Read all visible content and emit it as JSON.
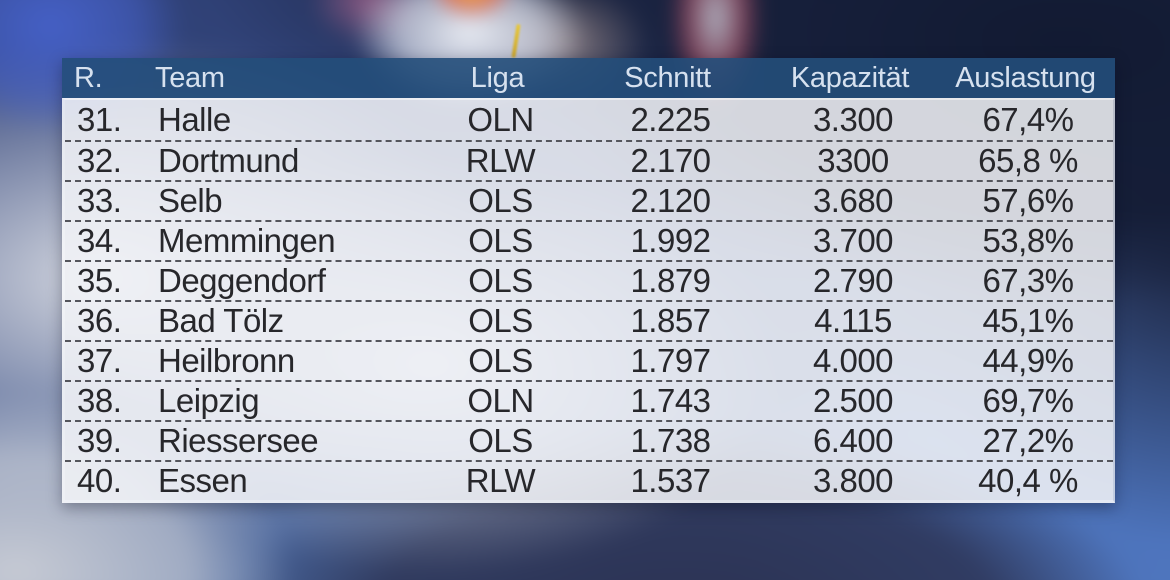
{
  "table": {
    "columns": [
      {
        "key": "rank",
        "label": "R."
      },
      {
        "key": "team",
        "label": "Team"
      },
      {
        "key": "liga",
        "label": "Liga"
      },
      {
        "key": "schnitt",
        "label": "Schnitt"
      },
      {
        "key": "kapazitaet",
        "label": "Kapazität"
      },
      {
        "key": "auslastung",
        "label": "Auslastung"
      }
    ],
    "rows": [
      {
        "rank": "31.",
        "team": "Halle",
        "liga": "OLN",
        "schnitt": "2.225",
        "kapazitaet": "3.300",
        "auslastung": "67,4%"
      },
      {
        "rank": "32.",
        "team": "Dortmund",
        "liga": "RLW",
        "schnitt": "2.170",
        "kapazitaet": "3300",
        "auslastung": "65,8 %"
      },
      {
        "rank": "33.",
        "team": "Selb",
        "liga": "OLS",
        "schnitt": "2.120",
        "kapazitaet": "3.680",
        "auslastung": "57,6%"
      },
      {
        "rank": "34.",
        "team": "Memmingen",
        "liga": "OLS",
        "schnitt": "1.992",
        "kapazitaet": "3.700",
        "auslastung": "53,8%"
      },
      {
        "rank": "35.",
        "team": "Deggendorf",
        "liga": "OLS",
        "schnitt": "1.879",
        "kapazitaet": "2.790",
        "auslastung": "67,3%"
      },
      {
        "rank": "36.",
        "team": "Bad Tölz",
        "liga": "OLS",
        "schnitt": "1.857",
        "kapazitaet": "4.115",
        "auslastung": "45,1%"
      },
      {
        "rank": "37.",
        "team": "Heilbronn",
        "liga": "OLS",
        "schnitt": "1.797",
        "kapazitaet": "4.000",
        "auslastung": "44,9%"
      },
      {
        "rank": "38.",
        "team": "Leipzig",
        "liga": "OLN",
        "schnitt": "1.743",
        "kapazitaet": "2.500",
        "auslastung": "69,7%"
      },
      {
        "rank": "39.",
        "team": "Riessersee",
        "liga": "OLS",
        "schnitt": "1.738",
        "kapazitaet": "6.400",
        "auslastung": "27,2%"
      },
      {
        "rank": "40.",
        "team": "Essen",
        "liga": "RLW",
        "schnitt": "1.537",
        "kapazitaet": "3.800",
        "auslastung": "40,4 %"
      }
    ]
  },
  "colors": {
    "header_bg": "#244E7A",
    "header_text": "#D6E1EF",
    "row_bg": "#F3F4F8",
    "body_text": "#27272B",
    "separator_dash": "#54555C"
  },
  "chart_data": {
    "type": "table",
    "columns": [
      "R.",
      "Team",
      "Liga",
      "Schnitt",
      "Kapazität",
      "Auslastung"
    ],
    "rows": [
      [
        "31.",
        "Halle",
        "OLN",
        "2.225",
        "3.300",
        "67,4%"
      ],
      [
        "32.",
        "Dortmund",
        "RLW",
        "2.170",
        "3300",
        "65,8 %"
      ],
      [
        "33.",
        "Selb",
        "OLS",
        "2.120",
        "3.680",
        "57,6%"
      ],
      [
        "34.",
        "Memmingen",
        "OLS",
        "1.992",
        "3.700",
        "53,8%"
      ],
      [
        "35.",
        "Deggendorf",
        "OLS",
        "1.879",
        "2.790",
        "67,3%"
      ],
      [
        "36.",
        "Bad Tölz",
        "OLS",
        "1.857",
        "4.115",
        "45,1%"
      ],
      [
        "37.",
        "Heilbronn",
        "OLS",
        "1.797",
        "4.000",
        "44,9%"
      ],
      [
        "38.",
        "Leipzig",
        "OLN",
        "1.743",
        "2.500",
        "69,7%"
      ],
      [
        "39.",
        "Riessersee",
        "OLS",
        "1.738",
        "6.400",
        "27,2%"
      ],
      [
        "40.",
        "Essen",
        "RLW",
        "1.537",
        "3.800",
        "40,4 %"
      ]
    ]
  }
}
